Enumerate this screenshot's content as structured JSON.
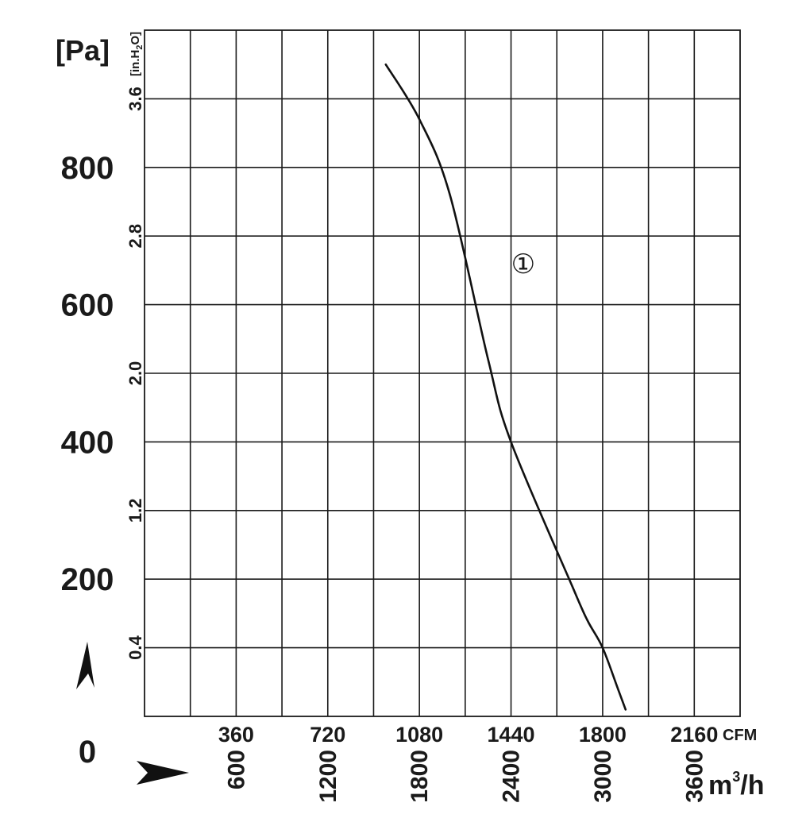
{
  "chart_data": {
    "type": "line",
    "title": "",
    "y_primary": {
      "unit": "[Pa]",
      "ticks": [
        "0",
        "200",
        "400",
        "600",
        "800"
      ],
      "range": [
        0,
        1000
      ]
    },
    "y_secondary": {
      "unit": "[in.H2O]",
      "unit_parts": {
        "main": "[in.H",
        "sub": "2",
        "tail": "O]"
      },
      "ticks": [
        "0.4",
        "1.2",
        "2.0",
        "2.8",
        "3.6"
      ],
      "range": [
        0,
        4.0
      ]
    },
    "x_primary": {
      "unit": "CFM",
      "ticks": [
        "360",
        "720",
        "1080",
        "1440",
        "1800",
        "2160"
      ],
      "range": [
        0,
        2340
      ]
    },
    "x_secondary": {
      "unit": "m3/h",
      "unit_parts": {
        "main": "m",
        "sup": "3",
        "tail": "/h"
      },
      "ticks": [
        "600",
        "1200",
        "1800",
        "2400",
        "3000",
        "3600"
      ],
      "range": [
        0,
        3900
      ]
    },
    "grid": true,
    "series": [
      {
        "name": "①",
        "x_unit": "m3/h",
        "y_unit": "Pa",
        "x": [
          1580,
          1800,
          2000,
          2250,
          2400,
          2800,
          2900,
          3000,
          3100,
          3150
        ],
        "y": [
          950,
          870,
          760,
          520,
          400,
          190,
          140,
          100,
          40,
          10
        ]
      }
    ],
    "annotations": [
      {
        "text": "①",
        "x": 2480,
        "y": 660
      }
    ]
  }
}
